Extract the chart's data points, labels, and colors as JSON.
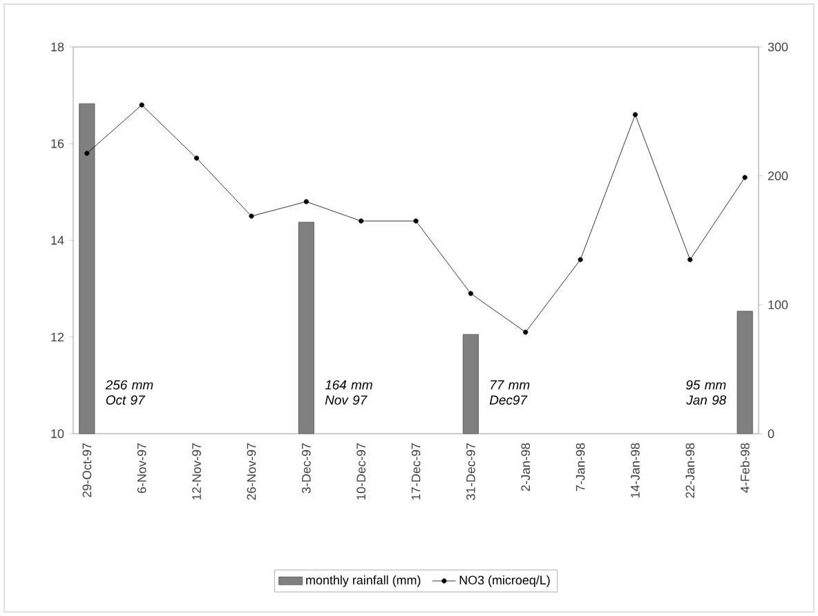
{
  "chart_data": {
    "type": "bar",
    "categories": [
      "29-Oct-97",
      "6-Nov-97",
      "12-Nov-97",
      "26-Nov-97",
      "3-Dec-97",
      "10-Dec-97",
      "17-Dec-97",
      "31-Dec-97",
      "2-Jan-98",
      "7-Jan-98",
      "14-Jan-98",
      "22-Jan-98",
      "4-Feb-98"
    ],
    "series": [
      {
        "name": "monthly rainfall (mm)",
        "type": "bar",
        "axis": "y2",
        "color": "#808080",
        "values": [
          256,
          null,
          null,
          null,
          164,
          null,
          null,
          77,
          null,
          null,
          null,
          null,
          95
        ]
      },
      {
        "name": "NO3 (microeq/L)",
        "type": "line",
        "color": "#000000",
        "values": [
          15.8,
          16.8,
          15.7,
          14.5,
          14.8,
          14.4,
          14.4,
          12.9,
          12.1,
          13.6,
          16.6,
          13.6,
          15.3
        ]
      }
    ],
    "ylim": [
      10,
      18
    ],
    "yticks": [
      10,
      12,
      14,
      16,
      18
    ],
    "y2lim": [
      0,
      300
    ],
    "y2ticks": [
      0,
      100,
      200,
      300
    ],
    "marker": "circle",
    "line_style": "solid",
    "legend": "bottom",
    "annotations": [
      "256 mm Oct 97",
      "164 mm Nov 97",
      "77 mm Dec97",
      "95 mm Jan 98"
    ]
  }
}
